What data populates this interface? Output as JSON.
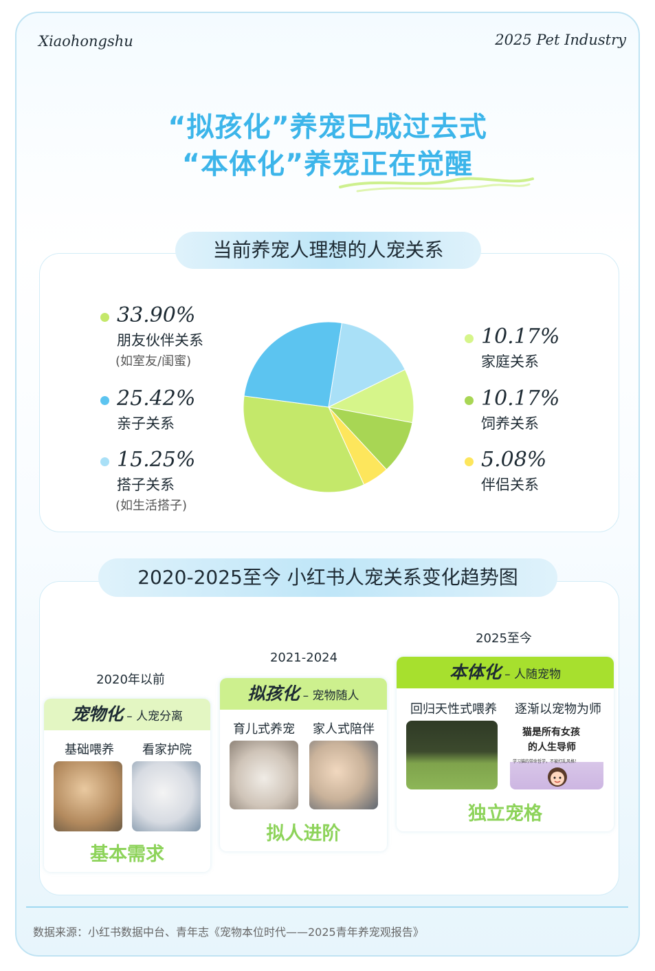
{
  "header": {
    "brand": "Xiaohongshu",
    "report": "2025 Pet Industry"
  },
  "headline": {
    "line1": "“拟孩化”养宠已成过去式",
    "line2": "“本体化”养宠正在觉醒"
  },
  "section1": {
    "title": "当前养宠人理想的人宠关系"
  },
  "section2": {
    "title": "2020-2025至今 小红书人宠关系变化趋势图"
  },
  "chart_data": {
    "type": "pie",
    "title": "当前养宠人理想的人宠关系",
    "slices": [
      {
        "label": "朋友伙伴关系",
        "note": "(如室友/闺蜜)",
        "value": 33.9,
        "display": "33.90%",
        "color": "#c4e86a"
      },
      {
        "label": "亲子关系",
        "note": "",
        "value": 25.42,
        "display": "25.42%",
        "color": "#5cc4f0"
      },
      {
        "label": "搭子关系",
        "note": "(如生活搭子)",
        "value": 15.25,
        "display": "15.25%",
        "color": "#a9e0f7"
      },
      {
        "label": "家庭关系",
        "note": "",
        "value": 10.17,
        "display": "10.17%",
        "color": "#d6f58a"
      },
      {
        "label": "饲养关系",
        "note": "",
        "value": 10.17,
        "display": "10.17%",
        "color": "#a8d654"
      },
      {
        "label": "伴侣关系",
        "note": "",
        "value": 5.08,
        "display": "5.08%",
        "color": "#fde65c"
      }
    ]
  },
  "timeline": [
    {
      "era": "2020年以前",
      "name": "宠物化",
      "desc": "– 人宠分离",
      "items": [
        "基础喂养",
        "看家护院"
      ],
      "result": "基本需求",
      "head_color": "#e3f6c2"
    },
    {
      "era": "2021-2024",
      "name": "拟孩化",
      "desc": "– 宠物随人",
      "items": [
        "育儿式养宠",
        "家人式陪伴"
      ],
      "result": "拟人进阶",
      "head_color": "#cdf08e"
    },
    {
      "era": "2025至今",
      "name": "本体化",
      "desc": "– 人随宠物",
      "items": [
        "回归天性式喂养",
        "逐渐以宠物为师"
      ],
      "result": "独立宠格",
      "head_color": "#a7e02e"
    }
  ],
  "poster": {
    "line1": "猫是所有女孩",
    "line2": "的人生导师",
    "small": "学习猫的带命哲学，不被打乱风格！"
  },
  "footer": {
    "source": "数据来源：小红书数据中台、青年志《宠物本位时代——2025青年养宠观报告》"
  }
}
